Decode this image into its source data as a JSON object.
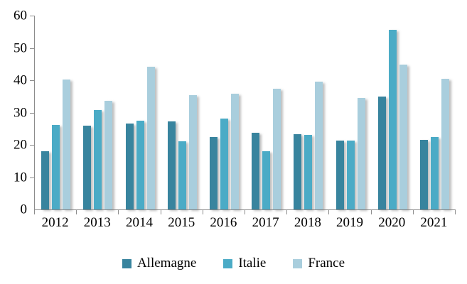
{
  "chart_data": {
    "type": "bar",
    "title": "",
    "xlabel": "",
    "ylabel": "",
    "categories": [
      "2012",
      "2013",
      "2014",
      "2015",
      "2016",
      "2017",
      "2018",
      "2019",
      "2020",
      "2021"
    ],
    "series": [
      {
        "name": "Allemagne",
        "color": "#38849e",
        "values": [
          18.0,
          26.0,
          26.5,
          27.2,
          22.5,
          23.8,
          23.4,
          21.3,
          35.0,
          21.6
        ]
      },
      {
        "name": "Italie",
        "color": "#4babc6",
        "values": [
          26.2,
          30.8,
          27.5,
          21.2,
          28.2,
          18.0,
          23.0,
          21.3,
          55.5,
          22.4
        ]
      },
      {
        "name": "France",
        "color": "#a9cedd",
        "values": [
          40.3,
          33.6,
          44.2,
          35.4,
          35.8,
          37.4,
          39.6,
          34.6,
          44.9,
          40.4
        ]
      }
    ],
    "ylim": [
      0,
      60
    ],
    "yticks": [
      0,
      10,
      20,
      30,
      40,
      50,
      60
    ],
    "grid": false,
    "legend_position": "bottom",
    "axis_color": "#8c8c8c",
    "background_color": "#ffffff"
  }
}
